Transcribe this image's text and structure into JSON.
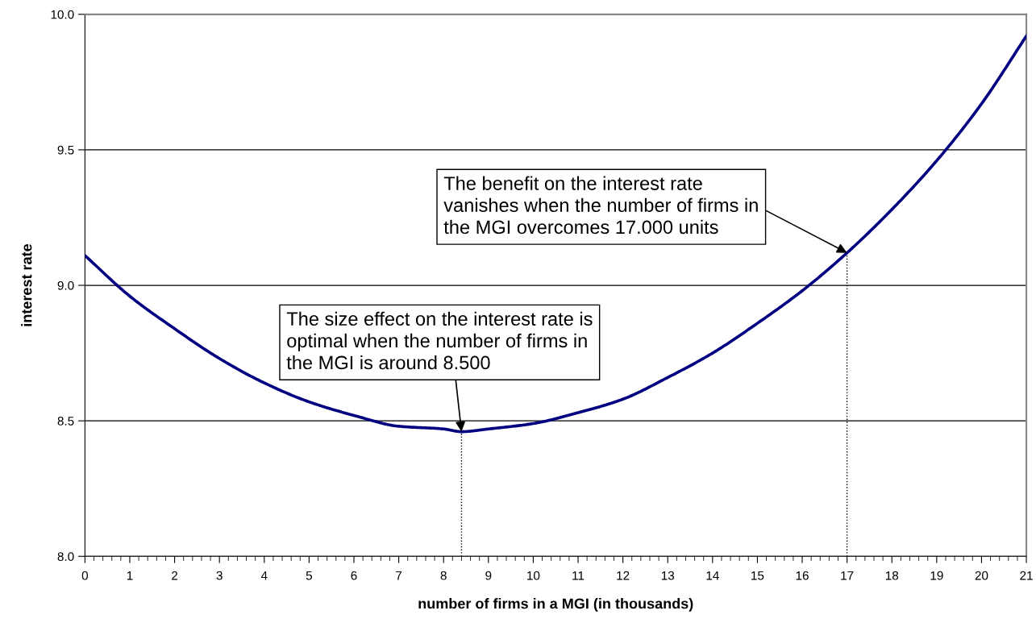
{
  "chart_data": {
    "type": "line",
    "xlabel": "number of firms in a MGI (in thousands)",
    "ylabel": "interest rate",
    "x": [
      0,
      1,
      2,
      3,
      4,
      5,
      6,
      7,
      8,
      8.4,
      9,
      10,
      11,
      12,
      13,
      14,
      15,
      16,
      17,
      18,
      19,
      20,
      21
    ],
    "series": [
      {
        "color": "#000080",
        "values": [
          9.11,
          8.96,
          8.84,
          8.73,
          8.64,
          8.57,
          8.52,
          8.48,
          8.47,
          8.46,
          8.47,
          8.49,
          8.53,
          8.58,
          8.66,
          8.75,
          8.86,
          8.98,
          9.12,
          9.28,
          9.46,
          9.67,
          9.92
        ]
      }
    ],
    "xlim": [
      0,
      21
    ],
    "xticks": [
      0,
      1,
      2,
      3,
      4,
      5,
      6,
      7,
      8,
      9,
      10,
      11,
      12,
      13,
      14,
      15,
      16,
      17,
      18,
      19,
      20,
      21
    ],
    "ylim": [
      8.0,
      10.0
    ],
    "yticks": [
      {
        "value": 8.0,
        "label": "8.0"
      },
      {
        "value": 8.5,
        "label": "8.5"
      },
      {
        "value": 9.0,
        "label": "9.0"
      },
      {
        "value": 9.5,
        "label": "9.5"
      },
      {
        "value": 10.0,
        "label": "10.0"
      }
    ],
    "ref_lines": [
      {
        "axis": "x",
        "value": 8.4,
        "line_style": "dotted",
        "color": "#000000"
      },
      {
        "axis": "x",
        "value": 17,
        "line_style": "dotted",
        "color": "#000000"
      }
    ],
    "grid": "y",
    "legend": false,
    "marker": "none",
    "line_style": "solid",
    "annotations": [
      {
        "text": "The size effect on the interest rate is\noptimal when the number of firms in\nthe MGI is around 8.500",
        "x": 8.4,
        "y": 8.46
      },
      {
        "text": "The benefit on the interest rate\nvanishes when the number of firms in\nthe MGI overcomes 17.000 units",
        "x": 17,
        "y": 9.12
      }
    ]
  }
}
